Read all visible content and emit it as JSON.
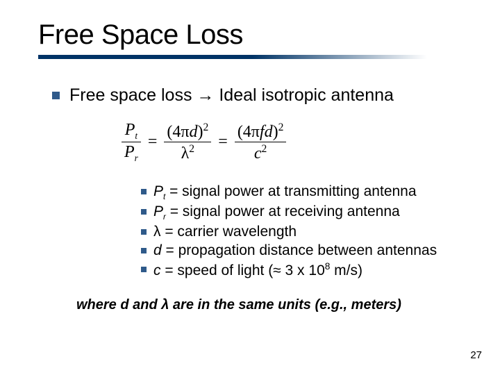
{
  "title": "Free Space Loss",
  "bullet1": "Free space loss → Ideal isotropic antenna",
  "formula": {
    "lhs_num": "P",
    "lhs_num_sub": "t",
    "lhs_den": "P",
    "lhs_den_sub": "r",
    "mid_num_a": "(4π",
    "mid_num_b": "d",
    "mid_num_c": ")",
    "mid_num_sup": "2",
    "mid_den": "λ",
    "mid_den_sup": "2",
    "rhs_num_a": "(4π",
    "rhs_num_b": "fd",
    "rhs_num_c": ")",
    "rhs_num_sup": "2",
    "rhs_den": "c",
    "rhs_den_sup": "2",
    "eq": "="
  },
  "defs": [
    {
      "sym_html": "<span class='ital'>P</span><span class='subsc'>t</span>",
      "txt": " = signal power at transmitting antenna"
    },
    {
      "sym_html": "<span class='ital'>P</span><span class='subsc'>r</span>",
      "txt": " = signal power at receiving antenna"
    },
    {
      "sym_html": "λ",
      "txt": " = carrier wavelength"
    },
    {
      "sym_html": "<span class='ital'>d</span>",
      "txt": " = propagation distance between antennas"
    },
    {
      "sym_html": "<span class='ital'>c</span>",
      "txt": " = speed of light (≈ 3 x 10<span class='supsc'>8</span> m/s)"
    }
  ],
  "note": "where d and λ are in the same units (e.g., meters)",
  "pagenum": "27",
  "colors": {
    "bullet": "#2f5a8a",
    "underline": "#003366",
    "text": "#000000"
  }
}
